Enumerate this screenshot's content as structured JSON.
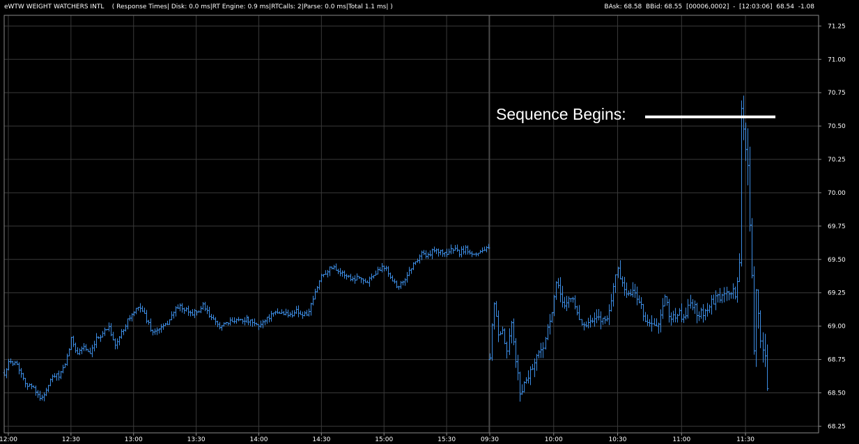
{
  "header": {
    "symbol_title": "eWTW WEIGHT WATCHERS INTL",
    "perf": "( Response Times| Disk: 0.0 ms|RT Engine: 0.9 ms|RTCalls: 2|Parse: 0.0 ms|Total 1.1 ms| )",
    "quote": "BAsk: 68.58  BBid: 68.55  [00006,0002]  -  [12:03:06]  68.54  -1.08"
  },
  "annotation": {
    "text": "Sequence Begins:"
  },
  "colors": {
    "background": "#000000",
    "grid": "#3a3a3a",
    "bar": "#3d8ee6",
    "frame": "#8a8a8a",
    "text": "#ffffff"
  },
  "chart_data": {
    "type": "bar",
    "style": "ohlc",
    "ylim": [
      68.2,
      71.33
    ],
    "y_ticks": [
      "71.25",
      "71.00",
      "70.75",
      "70.50",
      "70.25",
      "70.00",
      "69.75",
      "69.50",
      "69.25",
      "69.00",
      "68.75",
      "68.50",
      "68.25"
    ],
    "x_ticks": [
      "12:00",
      "12:30",
      "13:00",
      "13:30",
      "14:00",
      "14:30",
      "15:00",
      "15:30",
      "09:30",
      "10:00",
      "10:30",
      "11:00",
      "11:30"
    ],
    "grid": true,
    "sessions": [
      {
        "name": "day1",
        "x_start": "11:58",
        "x_end": "15:50",
        "bar_minutes": 1,
        "anchors": [
          [
            "11:58",
            68.65
          ],
          [
            "12:00",
            68.72
          ],
          [
            "12:03",
            68.74
          ],
          [
            "12:06",
            68.65
          ],
          [
            "12:09",
            68.55
          ],
          [
            "12:12",
            68.55
          ],
          [
            "12:15",
            68.45
          ],
          [
            "12:18",
            68.52
          ],
          [
            "12:21",
            68.62
          ],
          [
            "12:24",
            68.63
          ],
          [
            "12:27",
            68.7
          ],
          [
            "12:30",
            68.9
          ],
          [
            "12:33",
            68.8
          ],
          [
            "12:36",
            68.85
          ],
          [
            "12:39",
            68.78
          ],
          [
            "12:42",
            68.9
          ],
          [
            "12:45",
            68.95
          ],
          [
            "12:48",
            69.0
          ],
          [
            "12:51",
            68.85
          ],
          [
            "12:54",
            68.95
          ],
          [
            "12:57",
            69.05
          ],
          [
            "13:00",
            69.1
          ],
          [
            "13:03",
            69.15
          ],
          [
            "13:06",
            69.05
          ],
          [
            "13:09",
            68.95
          ],
          [
            "13:12",
            68.98
          ],
          [
            "13:15",
            69.0
          ],
          [
            "13:18",
            69.08
          ],
          [
            "13:21",
            69.15
          ],
          [
            "13:24",
            69.12
          ],
          [
            "13:27",
            69.1
          ],
          [
            "13:30",
            69.1
          ],
          [
            "13:33",
            69.15
          ],
          [
            "13:36",
            69.08
          ],
          [
            "13:39",
            69.02
          ],
          [
            "13:42",
            69.0
          ],
          [
            "13:45",
            69.02
          ],
          [
            "13:48",
            69.05
          ],
          [
            "13:51",
            69.05
          ],
          [
            "13:54",
            69.05
          ],
          [
            "13:57",
            69.02
          ],
          [
            "14:00",
            69.0
          ],
          [
            "14:03",
            69.05
          ],
          [
            "14:06",
            69.08
          ],
          [
            "14:09",
            69.1
          ],
          [
            "14:12",
            69.1
          ],
          [
            "14:15",
            69.08
          ],
          [
            "14:18",
            69.12
          ],
          [
            "14:21",
            69.08
          ],
          [
            "14:24",
            69.1
          ],
          [
            "14:27",
            69.25
          ],
          [
            "14:30",
            69.38
          ],
          [
            "14:33",
            69.42
          ],
          [
            "14:36",
            69.45
          ],
          [
            "14:39",
            69.4
          ],
          [
            "14:42",
            69.38
          ],
          [
            "14:45",
            69.35
          ],
          [
            "14:48",
            69.38
          ],
          [
            "14:51",
            69.32
          ],
          [
            "14:54",
            69.38
          ],
          [
            "14:57",
            69.42
          ],
          [
            "15:00",
            69.45
          ],
          [
            "15:03",
            69.38
          ],
          [
            "15:06",
            69.3
          ],
          [
            "15:09",
            69.32
          ],
          [
            "15:12",
            69.42
          ],
          [
            "15:15",
            69.48
          ],
          [
            "15:18",
            69.55
          ],
          [
            "15:21",
            69.52
          ],
          [
            "15:24",
            69.58
          ],
          [
            "15:27",
            69.55
          ],
          [
            "15:30",
            69.55
          ],
          [
            "15:33",
            69.58
          ],
          [
            "15:36",
            69.55
          ],
          [
            "15:39",
            69.58
          ],
          [
            "15:42",
            69.55
          ],
          [
            "15:45",
            69.55
          ],
          [
            "15:48",
            69.58
          ],
          [
            "15:50",
            69.57
          ]
        ]
      },
      {
        "name": "day2",
        "x_start": "09:30",
        "x_end": "12:03",
        "bar_minutes": 1,
        "anchors": [
          [
            "09:30",
            68.75
          ],
          [
            "09:32",
            69.2
          ],
          [
            "09:34",
            68.9
          ],
          [
            "09:36",
            68.95
          ],
          [
            "09:38",
            68.8
          ],
          [
            "09:40",
            69.0
          ],
          [
            "09:42",
            68.75
          ],
          [
            "09:44",
            68.5
          ],
          [
            "09:47",
            68.6
          ],
          [
            "09:50",
            68.7
          ],
          [
            "09:53",
            68.8
          ],
          [
            "09:56",
            68.9
          ],
          [
            "09:59",
            69.1
          ],
          [
            "10:01",
            69.3
          ],
          [
            "10:03",
            69.25
          ],
          [
            "10:05",
            69.15
          ],
          [
            "10:07",
            69.2
          ],
          [
            "10:09",
            69.2
          ],
          [
            "10:11",
            69.1
          ],
          [
            "10:14",
            69.0
          ],
          [
            "10:17",
            69.02
          ],
          [
            "10:20",
            69.05
          ],
          [
            "10:23",
            69.05
          ],
          [
            "10:26",
            69.1
          ],
          [
            "10:28",
            69.3
          ],
          [
            "10:30",
            69.45
          ],
          [
            "10:32",
            69.3
          ],
          [
            "10:34",
            69.25
          ],
          [
            "10:37",
            69.25
          ],
          [
            "10:40",
            69.2
          ],
          [
            "10:43",
            69.05
          ],
          [
            "10:46",
            69.0
          ],
          [
            "10:49",
            69.0
          ],
          [
            "10:52",
            69.2
          ],
          [
            "10:55",
            69.05
          ],
          [
            "10:58",
            69.1
          ],
          [
            "11:01",
            69.05
          ],
          [
            "11:04",
            69.2
          ],
          [
            "11:07",
            69.1
          ],
          [
            "11:10",
            69.1
          ],
          [
            "11:13",
            69.15
          ],
          [
            "11:16",
            69.2
          ],
          [
            "11:19",
            69.22
          ],
          [
            "11:22",
            69.25
          ],
          [
            "11:25",
            69.25
          ],
          [
            "11:27",
            69.4
          ],
          [
            "11:28",
            70.6
          ],
          [
            "11:29",
            70.5
          ],
          [
            "11:30",
            70.3
          ],
          [
            "11:31",
            70.2
          ],
          [
            "11:32",
            69.8
          ],
          [
            "11:33",
            69.4
          ],
          [
            "11:34",
            68.9
          ],
          [
            "11:35",
            69.2
          ],
          [
            "11:36",
            69.1
          ],
          [
            "11:37",
            68.95
          ],
          [
            "11:38",
            68.8
          ],
          [
            "11:39",
            68.7
          ],
          [
            "11:40",
            68.6
          ]
        ]
      }
    ]
  }
}
